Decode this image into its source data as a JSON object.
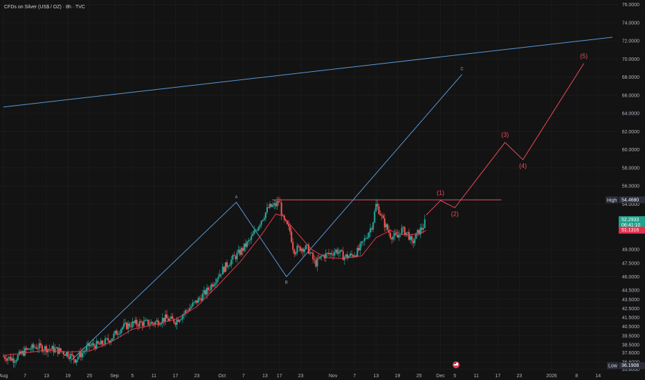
{
  "title": "CFDs on Silver (US$ / OZ) · 8h · TVC",
  "chart_data": {
    "type": "candlestick",
    "symbol": "CFDs on Silver (US$ / OZ)",
    "interval": "8h",
    "source": "TVC",
    "ylim": [
      35.6,
      76.5
    ],
    "y_ticks": [
      "76.0000",
      "74.0000",
      "72.0000",
      "70.0000",
      "68.0000",
      "66.0000",
      "64.0000",
      "62.0000",
      "60.0000",
      "58.0000",
      "56.0000",
      "54.0000",
      "49.0000",
      "47.5000",
      "46.0000",
      "44.5000",
      "43.5000",
      "42.5000",
      "41.5000",
      "40.5000",
      "39.5000",
      "38.5000",
      "37.6000",
      "36.6000",
      "35.8000"
    ],
    "y_tick_values": [
      76,
      74,
      72,
      70,
      68,
      66,
      64,
      62,
      60,
      58,
      56,
      54,
      49,
      47.5,
      46,
      44.5,
      43.5,
      42.5,
      41.5,
      40.5,
      39.5,
      38.5,
      37.6,
      36.6,
      35.8
    ],
    "x_ticks": [
      {
        "label": "Aug",
        "t": 0
      },
      {
        "label": "7",
        "t": 6
      },
      {
        "label": "13",
        "t": 12
      },
      {
        "label": "19",
        "t": 18
      },
      {
        "label": "25",
        "t": 24
      },
      {
        "label": "Sep",
        "t": 31
      },
      {
        "label": "5",
        "t": 36
      },
      {
        "label": "11",
        "t": 42
      },
      {
        "label": "17",
        "t": 48
      },
      {
        "label": "23",
        "t": 54
      },
      {
        "label": "Oct",
        "t": 61
      },
      {
        "label": "7",
        "t": 67
      },
      {
        "label": "13",
        "t": 73
      },
      {
        "label": "17",
        "t": 77
      },
      {
        "label": "23",
        "t": 83
      },
      {
        "label": "Nov",
        "t": 92
      },
      {
        "label": "7",
        "t": 98
      },
      {
        "label": "13",
        "t": 104
      },
      {
        "label": "19",
        "t": 110
      },
      {
        "label": "25",
        "t": 116
      },
      {
        "label": "Dec",
        "t": 122
      },
      {
        "label": "5",
        "t": 126
      },
      {
        "label": "11",
        "t": 132
      },
      {
        "label": "17",
        "t": 138
      },
      {
        "label": "23",
        "t": 144
      },
      {
        "label": "2026",
        "t": 153
      },
      {
        "label": "8",
        "t": 160
      },
      {
        "label": "14",
        "t": 166
      }
    ],
    "x_range": [
      0,
      170
    ],
    "price_path": [
      [
        0,
        37.2
      ],
      [
        3,
        36.9
      ],
      [
        6,
        37.8
      ],
      [
        9,
        38.3
      ],
      [
        12,
        38.1
      ],
      [
        15,
        37.9
      ],
      [
        18,
        37.5
      ],
      [
        20,
        36.9
      ],
      [
        22,
        37.6
      ],
      [
        24,
        38.4
      ],
      [
        27,
        38.5
      ],
      [
        30,
        39.2
      ],
      [
        33,
        40.4
      ],
      [
        36,
        40.8
      ],
      [
        39,
        40.9
      ],
      [
        42,
        40.9
      ],
      [
        45,
        41.4
      ],
      [
        48,
        41.1
      ],
      [
        51,
        42.2
      ],
      [
        54,
        43.3
      ],
      [
        57,
        44.5
      ],
      [
        60,
        46.2
      ],
      [
        63,
        47.6
      ],
      [
        66,
        48.7
      ],
      [
        69,
        50.1
      ],
      [
        72,
        52.3
      ],
      [
        74,
        53.6
      ],
      [
        76,
        53.9
      ],
      [
        77,
        54.4
      ],
      [
        78,
        52.3
      ],
      [
        80,
        51.0
      ],
      [
        81,
        48.9
      ],
      [
        83,
        49.2
      ],
      [
        85,
        49.1
      ],
      [
        87,
        47.4
      ],
      [
        89,
        48.3
      ],
      [
        91,
        48.5
      ],
      [
        93,
        48.9
      ],
      [
        95,
        48.2
      ],
      [
        97,
        48.3
      ],
      [
        99,
        48.8
      ],
      [
        101,
        50.2
      ],
      [
        103,
        51.8
      ],
      [
        104,
        53.9
      ],
      [
        105,
        53.2
      ],
      [
        106,
        52.1
      ],
      [
        108,
        50.6
      ],
      [
        110,
        50.3
      ],
      [
        111,
        51.2
      ],
      [
        113,
        50.7
      ],
      [
        114,
        49.6
      ],
      [
        115,
        50.4
      ],
      [
        116,
        51.0
      ],
      [
        117,
        51.4
      ],
      [
        118,
        52.3
      ]
    ],
    "moving_average": [
      [
        0,
        37.3
      ],
      [
        6,
        37.6
      ],
      [
        12,
        37.9
      ],
      [
        18,
        37.7
      ],
      [
        24,
        37.8
      ],
      [
        30,
        38.8
      ],
      [
        36,
        40.2
      ],
      [
        42,
        40.7
      ],
      [
        48,
        41.3
      ],
      [
        54,
        42.7
      ],
      [
        60,
        45.1
      ],
      [
        66,
        47.6
      ],
      [
        72,
        50.6
      ],
      [
        76,
        52.9
      ],
      [
        78,
        52.7
      ],
      [
        82,
        50.8
      ],
      [
        86,
        49.0
      ],
      [
        90,
        48.1
      ],
      [
        95,
        48.0
      ],
      [
        100,
        48.3
      ],
      [
        104,
        50.3
      ],
      [
        108,
        51.1
      ],
      [
        112,
        50.6
      ],
      [
        116,
        50.7
      ],
      [
        118,
        51.1
      ]
    ],
    "high_line": {
      "value": 54.468,
      "t_start": 75,
      "t_end": 139
    },
    "blue_channel_top": [
      [
        0,
        64.7
      ],
      [
        170,
        72.4
      ]
    ],
    "blue_abc": [
      {
        "t": 19,
        "v": 36.8
      },
      {
        "t": 65,
        "v": 54.2,
        "label": "A"
      },
      {
        "t": 79,
        "v": 46.0,
        "label": "B"
      },
      {
        "t": 128,
        "v": 68.3,
        "label": "C"
      }
    ],
    "projection": [
      {
        "t": 118,
        "v": 52.8
      },
      {
        "t": 122,
        "v": 54.4,
        "label": "(1)"
      },
      {
        "t": 126,
        "v": 53.6,
        "label": "(2)"
      },
      {
        "t": 140,
        "v": 60.8,
        "label": "(3)"
      },
      {
        "t": 145,
        "v": 58.9,
        "label": "(4)"
      },
      {
        "t": 162,
        "v": 69.5,
        "label": "(5)"
      }
    ],
    "price_tags": {
      "high": {
        "label": "High",
        "value": "54.4680"
      },
      "last": {
        "value": "52.2933",
        "countdown": "06:41:10"
      },
      "ma": {
        "value": "51.1316"
      },
      "low": {
        "label": "Low",
        "value": "36.1908"
      }
    },
    "colors": {
      "bull": "#26a69a",
      "bear": "#ef5350",
      "ma": "#e53950",
      "blue": "#5b9ad8",
      "projection": "#ef4b5a",
      "high_line": "#f0506a",
      "last_tag": "#22a18e",
      "ma_tag": "#e0324f"
    }
  }
}
